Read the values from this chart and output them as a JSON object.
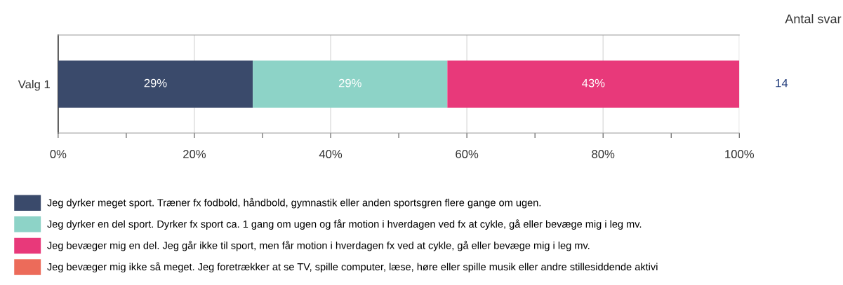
{
  "chart_data": {
    "type": "bar",
    "orientation": "horizontal",
    "stacked": true,
    "categories": [
      "Valg 1"
    ],
    "series": [
      {
        "name": "Jeg dyrker meget sport. Træner fx fodbold, håndbold, gymnastik eller anden sportsgren flere gange om ugen.",
        "color": "#3a4a6b",
        "values": [
          28.57
        ],
        "value_labels": [
          "29%"
        ]
      },
      {
        "name": "Jeg dyrker en del sport. Dyrker fx sport ca. 1 gang om ugen og får motion i hverdagen ved fx at cykle, gå eller bevæge mig i leg mv.",
        "color": "#8dd3c7",
        "values": [
          28.57
        ],
        "value_labels": [
          "29%"
        ]
      },
      {
        "name": "Jeg bevæger mig en del. Jeg går ikke til sport, men får motion i hverdagen fx ved at cykle, gå eller bevæge mig i leg mv.",
        "color": "#e8397a",
        "values": [
          42.86
        ],
        "value_labels": [
          "43%"
        ]
      },
      {
        "name": "Jeg bevæger mig ikke så meget. Jeg foretrækker at se TV, spille computer, læse, høre eller spille musik eller andre stillesiddende aktivi",
        "color": "#ec6b5a",
        "values": [
          0
        ],
        "value_labels": [
          null
        ]
      }
    ],
    "xlim": [
      0,
      100
    ],
    "xticks": [
      {
        "value": 0,
        "label": "0%"
      },
      {
        "value": 10,
        "label": null
      },
      {
        "value": 20,
        "label": "20%"
      },
      {
        "value": 30,
        "label": null
      },
      {
        "value": 40,
        "label": "40%"
      },
      {
        "value": 50,
        "label": null
      },
      {
        "value": 60,
        "label": "60%"
      },
      {
        "value": 70,
        "label": null
      },
      {
        "value": 80,
        "label": "80%"
      },
      {
        "value": 90,
        "label": null
      },
      {
        "value": 100,
        "label": "100%"
      }
    ],
    "grid": "x",
    "legend": "bottom",
    "annotations": [
      "Antal svar",
      "14"
    ]
  }
}
